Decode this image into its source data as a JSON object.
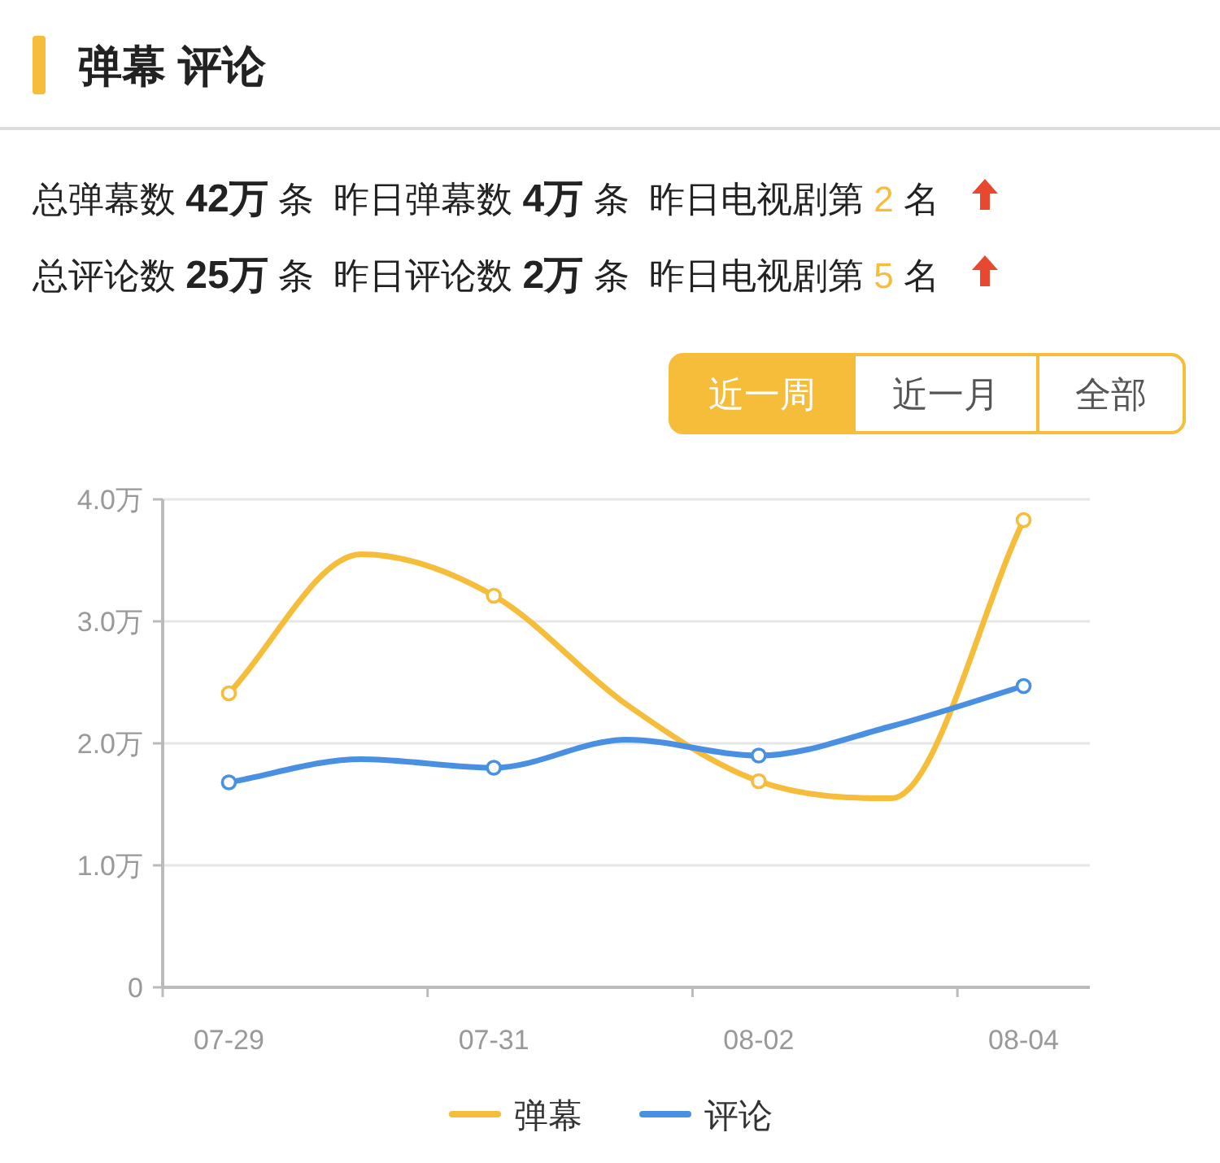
{
  "chart_data": {
    "type": "line",
    "title": "弹幕 评论",
    "annotations": [
      "总弹幕数 42万 条  昨日弹幕数 4万 条  昨日电视剧第 2 名",
      "总评论数 25万 条  昨日评论数 2万 条  昨日电视剧第 5 名",
      "近一周",
      "近一月",
      "全部"
    ],
    "categories": [
      "07-29",
      null,
      "07-31",
      null,
      "08-02",
      null,
      "08-04"
    ],
    "series": [
      {
        "name": "弹幕",
        "color": "#f5bd3a",
        "values": [
          2.41,
          3.55,
          3.21,
          2.32,
          1.69,
          1.55,
          3.83
        ]
      },
      {
        "name": "评论",
        "color": "#4a90e2",
        "values": [
          1.68,
          1.87,
          1.8,
          2.03,
          1.9,
          2.14,
          2.47
        ]
      }
    ],
    "ylim": [
      0,
      4
    ],
    "yticks": [
      0,
      {
        "value": 1,
        "label": "1.0万"
      },
      {
        "value": 2,
        "label": "2.0万"
      },
      {
        "value": 3,
        "label": "3.0万"
      },
      {
        "value": 4,
        "label": "4.0万"
      }
    ],
    "grid": "y",
    "legend": "bottom",
    "marker": "circle"
  }
}
